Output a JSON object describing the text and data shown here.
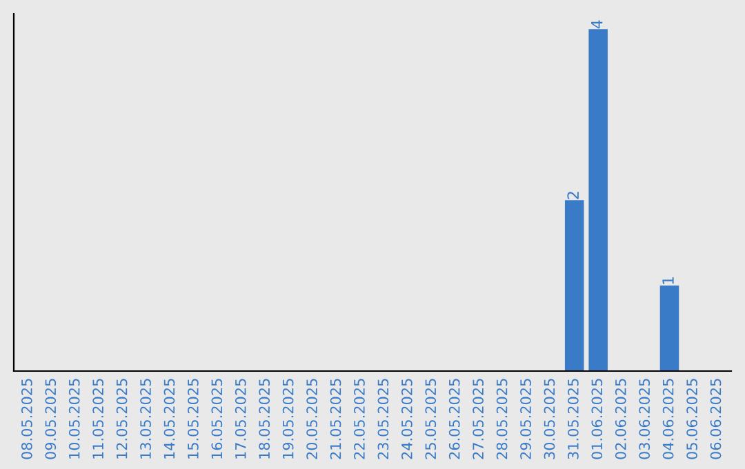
{
  "chart_data": {
    "type": "bar",
    "categories": [
      "08.05.2025",
      "09.05.2025",
      "10.05.2025",
      "11.05.2025",
      "12.05.2025",
      "13.05.2025",
      "14.05.2025",
      "15.05.2025",
      "16.05.2025",
      "17.05.2025",
      "18.05.2025",
      "19.05.2025",
      "20.05.2025",
      "21.05.2025",
      "22.05.2025",
      "23.05.2025",
      "24.05.2025",
      "25.05.2025",
      "26.05.2025",
      "27.05.2025",
      "28.05.2025",
      "29.05.2025",
      "30.05.2025",
      "31.05.2025",
      "01.06.2025",
      "02.06.2025",
      "03.06.2025",
      "04.06.2025",
      "05.06.2025",
      "06.06.2025"
    ],
    "values": [
      null,
      null,
      null,
      null,
      null,
      null,
      null,
      null,
      null,
      null,
      null,
      null,
      null,
      null,
      null,
      null,
      null,
      null,
      null,
      null,
      null,
      null,
      null,
      2,
      4,
      null,
      null,
      1,
      null,
      null
    ],
    "data_labels": true,
    "color": "#3a7bc8",
    "tick_labels": "x"
  }
}
